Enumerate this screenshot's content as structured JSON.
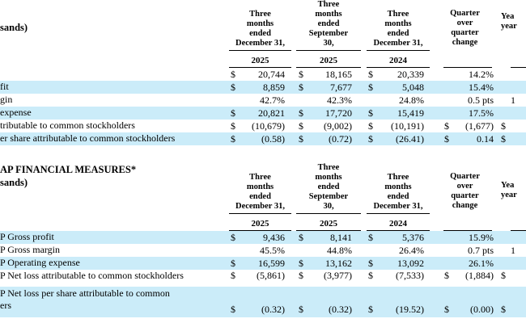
{
  "colors": {
    "row_highlight": "#cbecf9",
    "rule": "#000000",
    "text": "#000000"
  },
  "tables": [
    {
      "name": "quarterly-results",
      "left_header": "sands)",
      "columns": [
        {
          "header": "Three\nmonths\nended\nDecember 31,",
          "year": "2025"
        },
        {
          "header": "Three\nmonths\nended\nSeptember\n30,",
          "year": "2025"
        },
        {
          "header": "Three\nmonths\nended\nDecember 31,",
          "year": "2024"
        },
        {
          "header": "Quarter\nover\nquarter\nchange",
          "year": ""
        },
        {
          "header": "Yea\nyear",
          "year": ""
        }
      ],
      "rows": [
        {
          "label": "",
          "shaded": false,
          "cells": [
            {
              "cur": "$",
              "val": "20,744"
            },
            {
              "cur": "$",
              "val": "18,165"
            },
            {
              "cur": "$",
              "val": "20,339"
            },
            {
              "cur": "",
              "val": "14.2%"
            },
            {
              "cur": "",
              "val": ""
            }
          ]
        },
        {
          "label": "fit",
          "shaded": true,
          "cells": [
            {
              "cur": "$",
              "val": "8,859"
            },
            {
              "cur": "$",
              "val": "7,677"
            },
            {
              "cur": "$",
              "val": "5,048"
            },
            {
              "cur": "",
              "val": "15.4%"
            },
            {
              "cur": "",
              "val": ""
            }
          ]
        },
        {
          "label": "gin",
          "shaded": false,
          "cells": [
            {
              "cur": "",
              "val": "42.7%"
            },
            {
              "cur": "",
              "val": "42.3%"
            },
            {
              "cur": "",
              "val": "24.8%"
            },
            {
              "cur": "",
              "val": "0.5 pts"
            },
            {
              "cur": "",
              "val": "1"
            }
          ]
        },
        {
          "label": "expense",
          "shaded": true,
          "cells": [
            {
              "cur": "$",
              "val": "20,821"
            },
            {
              "cur": "$",
              "val": "17,720"
            },
            {
              "cur": "$",
              "val": "15,419"
            },
            {
              "cur": "",
              "val": "17.5%"
            },
            {
              "cur": "",
              "val": ""
            }
          ]
        },
        {
          "label": "tributable to common stockholders",
          "shaded": false,
          "cells": [
            {
              "cur": "$",
              "val": "(10,679)"
            },
            {
              "cur": "$",
              "val": "(9,002)"
            },
            {
              "cur": "$",
              "val": "(10,191)"
            },
            {
              "cur": "$",
              "val": "(1,677)"
            },
            {
              "cur": "$",
              "val": ""
            }
          ]
        },
        {
          "label": "er share attributable to common stockholders",
          "shaded": true,
          "cells": [
            {
              "cur": "$",
              "val": "(0.58)"
            },
            {
              "cur": "$",
              "val": "(0.72)"
            },
            {
              "cur": "$",
              "val": "(26.41)"
            },
            {
              "cur": "$",
              "val": "0.14"
            },
            {
              "cur": "$",
              "val": ""
            }
          ]
        }
      ]
    },
    {
      "name": "non-gaap-measures",
      "left_header": "AP FINANCIAL MEASURES*\nsands)",
      "columns": [
        {
          "header": "Three\nmonths\nended\nDecember 31,",
          "year": "2025"
        },
        {
          "header": "Three\nmonths\nended\nSeptember\n30,",
          "year": "2025"
        },
        {
          "header": "Three\nmonths\nended\nDecember 31,",
          "year": "2024"
        },
        {
          "header": "Quarter\nover\nquarter\nchange",
          "year": ""
        },
        {
          "header": "Yea\nyear",
          "year": ""
        }
      ],
      "rows": [
        {
          "label": "P Gross profit",
          "shaded": true,
          "cells": [
            {
              "cur": "$",
              "val": "9,436"
            },
            {
              "cur": "$",
              "val": "8,141"
            },
            {
              "cur": "$",
              "val": "5,376"
            },
            {
              "cur": "",
              "val": "15.9%"
            },
            {
              "cur": "",
              "val": ""
            }
          ]
        },
        {
          "label": "P Gross margin",
          "shaded": false,
          "cells": [
            {
              "cur": "",
              "val": "45.5%"
            },
            {
              "cur": "",
              "val": "44.8%"
            },
            {
              "cur": "",
              "val": "26.4%"
            },
            {
              "cur": "",
              "val": "0.7 pts"
            },
            {
              "cur": "",
              "val": "1"
            }
          ]
        },
        {
          "label": "P Operating expense",
          "shaded": true,
          "cells": [
            {
              "cur": "$",
              "val": "16,599"
            },
            {
              "cur": "$",
              "val": "13,162"
            },
            {
              "cur": "$",
              "val": "13,092"
            },
            {
              "cur": "",
              "val": "26.1%"
            },
            {
              "cur": "",
              "val": ""
            }
          ]
        },
        {
          "label": "P Net loss attributable to common stockholders",
          "shaded": false,
          "cells": [
            {
              "cur": "$",
              "val": "(5,861)"
            },
            {
              "cur": "$",
              "val": "(3,977)"
            },
            {
              "cur": "$",
              "val": "(7,533)"
            },
            {
              "cur": "$",
              "val": "(1,884)"
            },
            {
              "cur": "$",
              "val": ""
            }
          ]
        },
        {
          "label": "P Net loss per share attributable to common\ners",
          "shaded": true,
          "tall": true,
          "cells": [
            {
              "cur": "$",
              "val": "(0.32)"
            },
            {
              "cur": "$",
              "val": "(0.32)"
            },
            {
              "cur": "$",
              "val": "(19.52)"
            },
            {
              "cur": "$",
              "val": "(0.00)"
            },
            {
              "cur": "$",
              "val": ""
            }
          ]
        }
      ]
    }
  ]
}
